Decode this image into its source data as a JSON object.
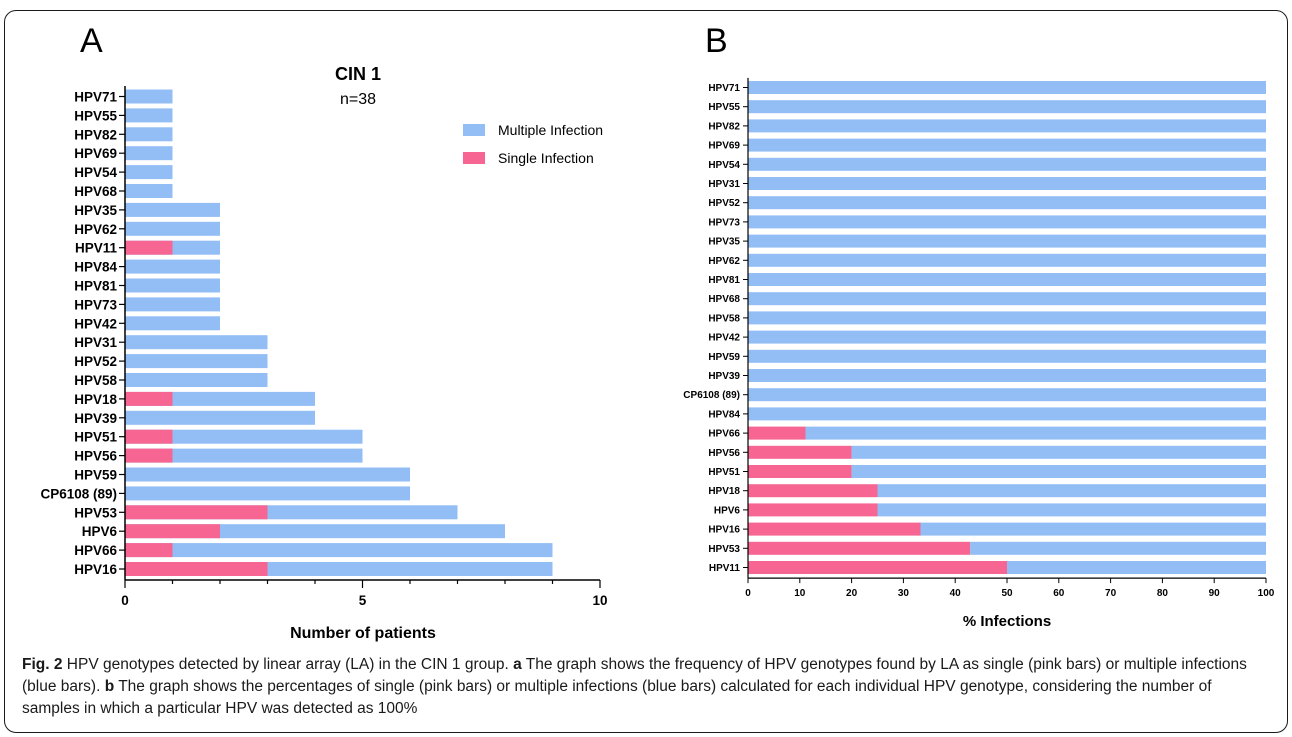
{
  "caption": {
    "fig_label": "Fig. 2",
    "text_1": " HPV genotypes detected by linear array (LA) in the CIN 1 group. ",
    "a_label": "a",
    "text_2": " The graph shows the frequency of HPV genotypes found by LA as single (pink bars) or multiple infections (blue bars). ",
    "b_label": "b",
    "text_3": " The graph shows the percentages of single (pink bars) or multiple infections (blue bars) calculated for each individual HPV genotype, considering the number of samples in which a particular HPV was detected as 100%"
  },
  "chart_data": [
    {
      "panel": "A",
      "type": "bar",
      "orientation": "horizontal",
      "stacked": false,
      "title": "CIN 1",
      "subtitle": "n=38",
      "xlabel": "Number of patients",
      "ylabel": "",
      "xlim": [
        0,
        10
      ],
      "xticks": [
        "0",
        "5",
        "10"
      ],
      "legend_position": "top-right",
      "colors": {
        "multiple": "#92bdf5",
        "single": "#f76592"
      },
      "categories": [
        "HPV71",
        "HPV55",
        "HPV82",
        "HPV69",
        "HPV54",
        "HPV68",
        "HPV35",
        "HPV62",
        "HPV11",
        "HPV84",
        "HPV81",
        "HPV73",
        "HPV42",
        "HPV31",
        "HPV52",
        "HPV58",
        "HPV18",
        "HPV39",
        "HPV51",
        "HPV56",
        "HPV59",
        "CP6108 (89)",
        "HPV53",
        "HPV6",
        "HPV66",
        "HPV16"
      ],
      "series": [
        {
          "name": "Multiple Infection",
          "values": [
            1,
            1,
            1,
            1,
            1,
            1,
            2,
            2,
            2,
            2,
            2,
            2,
            2,
            3,
            3,
            3,
            4,
            4,
            5,
            5,
            6,
            6,
            7,
            8,
            9,
            9
          ]
        },
        {
          "name": "Single Infection",
          "values": [
            0,
            0,
            0,
            0,
            0,
            0,
            0,
            0,
            1,
            0,
            0,
            0,
            0,
            0,
            0,
            0,
            1,
            0,
            1,
            1,
            0,
            0,
            3,
            2,
            1,
            3
          ]
        }
      ]
    },
    {
      "panel": "B",
      "type": "bar",
      "orientation": "horizontal",
      "stacked": true,
      "title": "",
      "xlabel": "% Infections",
      "ylabel": "",
      "xlim": [
        0,
        100
      ],
      "xticks": [
        "0",
        "10",
        "20",
        "30",
        "40",
        "50",
        "60",
        "70",
        "80",
        "90",
        "100"
      ],
      "colors": {
        "multiple": "#92bdf5",
        "single": "#f76592"
      },
      "categories": [
        "HPV71",
        "HPV55",
        "HPV82",
        "HPV69",
        "HPV54",
        "HPV31",
        "HPV52",
        "HPV73",
        "HPV35",
        "HPV62",
        "HPV81",
        "HPV68",
        "HPV58",
        "HPV42",
        "HPV59",
        "HPV39",
        "CP6108 (89)",
        "HPV84",
        "HPV66",
        "HPV56",
        "HPV51",
        "HPV18",
        "HPV6",
        "HPV16",
        "HPV53",
        "HPV11"
      ],
      "series": [
        {
          "name": "Single Infection",
          "values": [
            0,
            0,
            0,
            0,
            0,
            0,
            0,
            0,
            0,
            0,
            0,
            0,
            0,
            0,
            0,
            0,
            0,
            0,
            11.1,
            20,
            20,
            25,
            25,
            33.3,
            42.9,
            50
          ]
        },
        {
          "name": "Multiple Infection",
          "values": [
            100,
            100,
            100,
            100,
            100,
            100,
            100,
            100,
            100,
            100,
            100,
            100,
            100,
            100,
            100,
            100,
            100,
            100,
            88.9,
            80,
            80,
            75,
            75,
            66.7,
            57.1,
            50
          ]
        }
      ]
    }
  ]
}
